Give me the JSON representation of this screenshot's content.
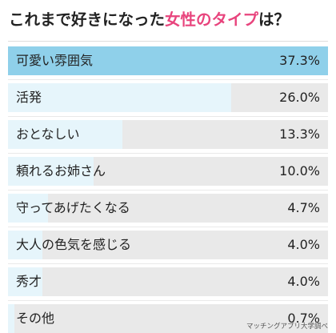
{
  "header": {
    "title_prefix": "これまで好きになった",
    "title_highlight": "女性のタイプ",
    "title_suffix": "は？"
  },
  "source": "マッチングアプリ大学調べ",
  "colors": {
    "highlight_text": "#e8447d",
    "top_bar": "#8fd0ea",
    "bar": "#e6f5fb",
    "track": "#e9e9e9"
  },
  "chart_data": {
    "type": "bar",
    "orientation": "horizontal",
    "title": "これまで好きになった女性のタイプは？",
    "categories": [
      "可愛い雰囲気",
      "活発",
      "おとなしい",
      "頼れるお姉さん",
      "守ってあげたくなる",
      "大人の色気を感じる",
      "秀才",
      "その他"
    ],
    "values": [
      37.3,
      26.0,
      13.3,
      10.0,
      4.7,
      4.0,
      4.0,
      0.7
    ],
    "value_labels": [
      "37.3%",
      "26.0%",
      "13.3%",
      "10.0%",
      "4.7%",
      "4.0%",
      "4.0%",
      "0.7%"
    ],
    "unit": "%",
    "xlim": [
      0,
      37.3
    ],
    "grid": false,
    "legend": "none"
  }
}
